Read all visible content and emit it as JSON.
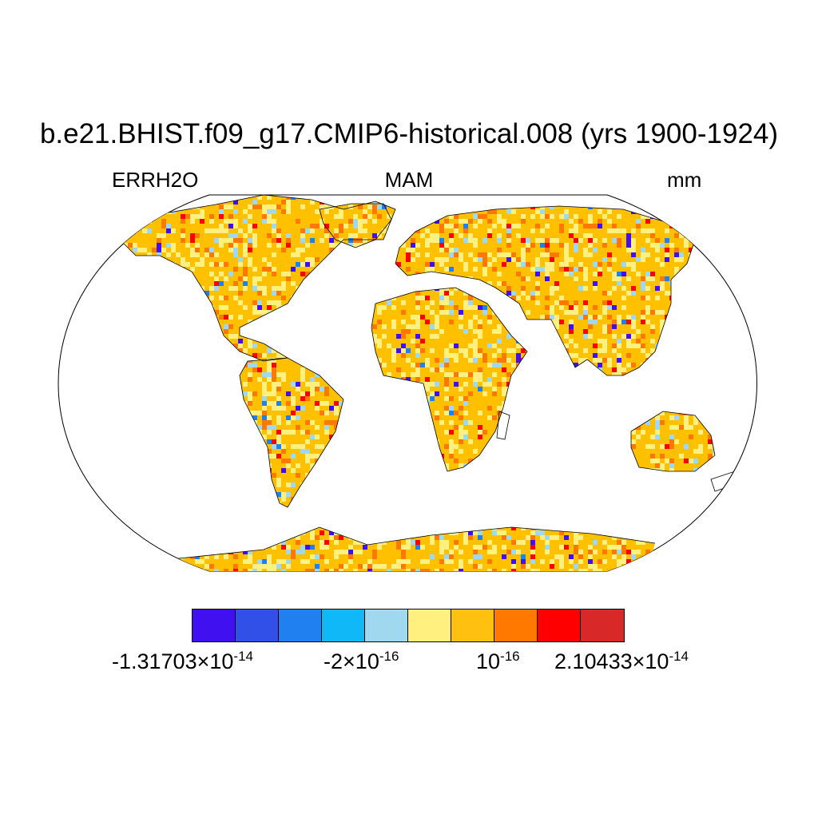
{
  "title": "b.e21.BHIST.f09_g17.CMIP6-historical.008 (yrs 1900-1924)",
  "subtitle_left": "ERRH2O",
  "subtitle_center": "MAM",
  "subtitle_right": "mm",
  "map": {
    "projection": "Robinson",
    "land_base_color": "#ffc000",
    "ocean_color": "#ffffff",
    "coastline_color": "#000000"
  },
  "colorbar": {
    "colors": [
      "#4010f0",
      "#3050e8",
      "#2080f0",
      "#10b8f8",
      "#a0d8f0",
      "#fff080",
      "#ffc010",
      "#ff7800",
      "#ff0000",
      "#d82828"
    ],
    "labels": [
      {
        "mantissa": "-1.31703",
        "times": "×",
        "base": "10",
        "exponent": "-14"
      },
      {
        "mantissa": "-2",
        "times": "×",
        "base": "10",
        "exponent": "-16"
      },
      {
        "mantissa": "",
        "times": "",
        "base": "10",
        "exponent": "-16"
      },
      {
        "mantissa": "2.10433",
        "times": "×",
        "base": "10",
        "exponent": "-14"
      }
    ]
  }
}
